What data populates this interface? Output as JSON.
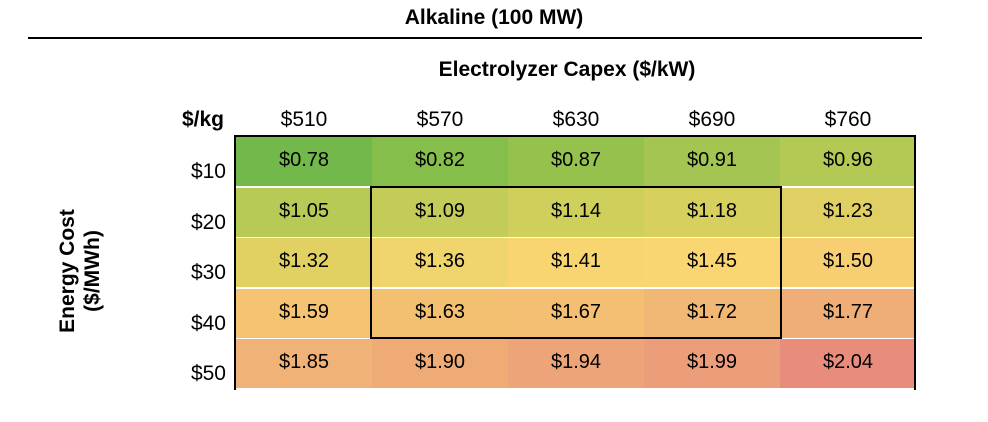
{
  "title": "Alkaline (100 MW)",
  "subtitle": "Electrolyzer Capex ($/kW)",
  "corner_label": "$/kg",
  "ylabel_line1": "Energy Cost",
  "ylabel_line2": "($/MWh)",
  "chart_data": {
    "type": "heatmap",
    "title": "Alkaline (100 MW)",
    "xlabel": "Electrolyzer Capex ($/kW)",
    "ylabel": "Energy Cost ($/MWh)",
    "value_unit": "$/kg",
    "columns": [
      "$510",
      "$570",
      "$630",
      "$690",
      "$760"
    ],
    "rows": [
      "$10",
      "$20",
      "$30",
      "$40",
      "$50"
    ],
    "values": [
      [
        "$0.78",
        "$0.82",
        "$0.87",
        "$0.91",
        "$0.96"
      ],
      [
        "$1.05",
        "$1.09",
        "$1.14",
        "$1.18",
        "$1.23"
      ],
      [
        "$1.32",
        "$1.36",
        "$1.41",
        "$1.45",
        "$1.50"
      ],
      [
        "$1.59",
        "$1.63",
        "$1.67",
        "$1.72",
        "$1.77"
      ],
      [
        "$1.85",
        "$1.90",
        "$1.94",
        "$1.99",
        "$2.04"
      ]
    ],
    "colors": [
      [
        "#72b84a",
        "#86be4c",
        "#94c24d",
        "#a4c551",
        "#b2c954"
      ],
      [
        "#b7ca56",
        "#c3cc59",
        "#cfcf5b",
        "#d7d05e",
        "#e0d063"
      ],
      [
        "#e1d062",
        "#f0d46c",
        "#f9d572",
        "#fad673",
        "#f8ce72"
      ],
      [
        "#f4c472",
        "#f3c072",
        "#f4be73",
        "#f1b875",
        "#efae78"
      ],
      [
        "#f0b277",
        "#efab76",
        "#eea479",
        "#ec9d7a",
        "#e88c7c"
      ]
    ],
    "highlight_box": {
      "row_range": [
        1,
        3
      ],
      "col_range": [
        1,
        3
      ]
    }
  }
}
